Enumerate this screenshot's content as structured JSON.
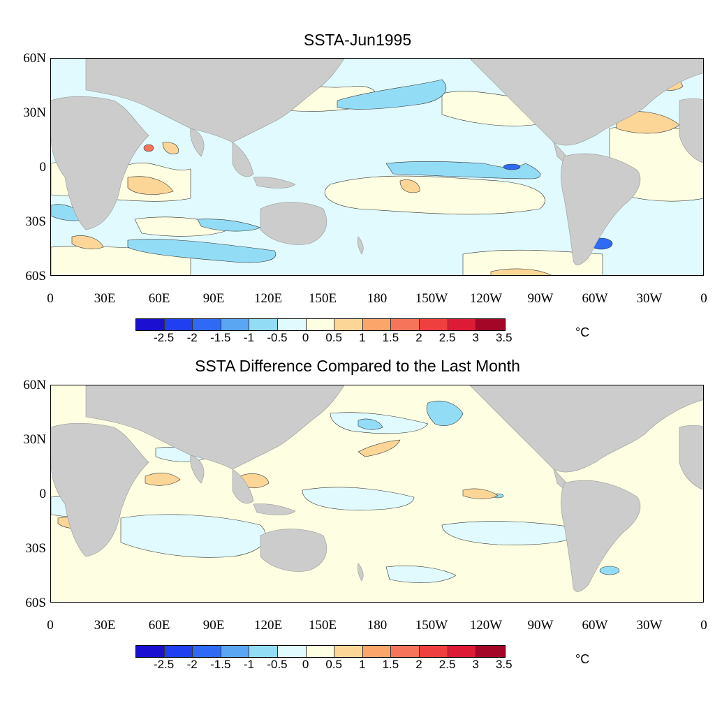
{
  "panels": [
    {
      "title": "SSTA-Jun1995",
      "lat_labels": [
        "60N",
        "30N",
        "0",
        "30S",
        "60S"
      ],
      "lon_labels": [
        "0",
        "30E",
        "60E",
        "90E",
        "120E",
        "150E",
        "180",
        "150W",
        "120W",
        "90W",
        "60W",
        "30W",
        "0"
      ],
      "colorbar": {
        "colors": [
          "#1b0fd1",
          "#1f3ff0",
          "#2f6af5",
          "#5aa6f3",
          "#93dcf6",
          "#e0fafd",
          "#fefee2",
          "#fbd697",
          "#fba56b",
          "#f6745a",
          "#ef3f3f",
          "#dd1b36",
          "#a30626"
        ],
        "labels": [
          "-2.5",
          "-2",
          "-1.5",
          "-1",
          "-0.5",
          "0",
          "0.5",
          "1",
          "1.5",
          "2",
          "2.5",
          "3",
          "3.5"
        ],
        "unit": "°C"
      }
    },
    {
      "title": "SSTA Difference Compared to the Last Month",
      "lat_labels": [
        "60N",
        "30N",
        "0",
        "30S",
        "60S"
      ],
      "lon_labels": [
        "0",
        "30E",
        "60E",
        "90E",
        "120E",
        "150E",
        "180",
        "150W",
        "120W",
        "90W",
        "60W",
        "30W",
        "0"
      ],
      "colorbar": {
        "colors": [
          "#1b0fd1",
          "#1f3ff0",
          "#2f6af5",
          "#5aa6f3",
          "#93dcf6",
          "#e0fafd",
          "#fefee2",
          "#fbd697",
          "#fba56b",
          "#f6745a",
          "#ef3f3f",
          "#dd1b36",
          "#a30626"
        ],
        "labels": [
          "-2.5",
          "-2",
          "-1.5",
          "-1",
          "-0.5",
          "0",
          "0.5",
          "1",
          "1.5",
          "2",
          "2.5",
          "3",
          "3.5"
        ],
        "unit": "°C"
      }
    }
  ]
}
